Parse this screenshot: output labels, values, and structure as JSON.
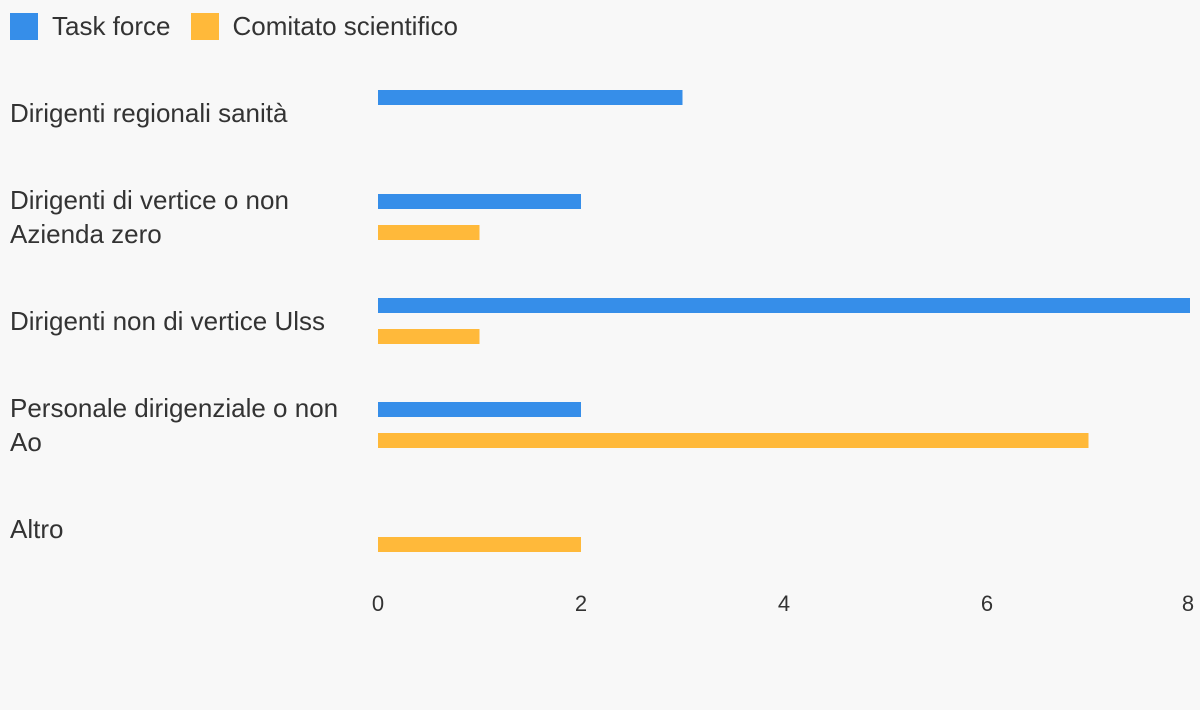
{
  "chart_data": {
    "type": "bar",
    "orientation": "horizontal",
    "categories": [
      [
        "Dirigenti regionali sanità"
      ],
      [
        "Dirigenti di vertice o non",
        "Azienda zero"
      ],
      [
        "Dirigenti non di vertice Ulss"
      ],
      [
        "Personale dirigenziale o non",
        "Ao"
      ],
      [
        "Altro"
      ]
    ],
    "series": [
      {
        "name": "Task force",
        "color": "#368ee9",
        "values": [
          3,
          2,
          8,
          2,
          0
        ]
      },
      {
        "name": "Comitato scientifico",
        "color": "#ffb93a",
        "values": [
          0,
          1,
          1,
          7,
          2
        ]
      }
    ],
    "xlim": [
      0,
      8
    ],
    "xticks": [
      0,
      2,
      4,
      6,
      8
    ],
    "grid": false,
    "legend_position": "top-left"
  }
}
